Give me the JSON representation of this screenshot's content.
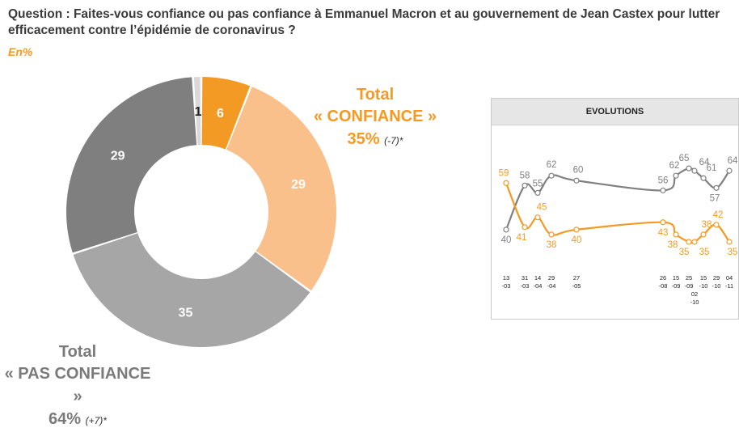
{
  "header": {
    "question": "Question : Faites-vous confiance ou pas confiance à Emmanuel Macron et au gouvernement de Jean Castex pour lutter efficacement contre l’épidémie de coronavirus ?",
    "unit": "En%"
  },
  "colors": {
    "orange": "#F39A24",
    "light_orange": "#F9C08B",
    "light_grey": "#A6A6A6",
    "dark_grey": "#7F7F7F",
    "very_light_grey": "#D9D9D9",
    "line_grey": "#808080"
  },
  "labels": {
    "confiance": {
      "t1": "Total",
      "t2": "« CONFIANCE »",
      "pct": "35%",
      "chg": "(-7)*"
    },
    "pas_confiance": {
      "t1": "Total",
      "t2": "« PAS CONFIANCE »",
      "pct": "64%",
      "chg": "(+7)*"
    }
  },
  "chart_data": [
    {
      "type": "pie",
      "style": "donut",
      "slices": [
        {
          "value": 6,
          "color": "#F39A24"
        },
        {
          "value": 29,
          "color": "#F9C08B"
        },
        {
          "value": 35,
          "color": "#A6A6A6"
        },
        {
          "value": 29,
          "color": "#7F7F7F"
        },
        {
          "value": 1,
          "color": "#D9D9D9"
        }
      ]
    },
    {
      "type": "line",
      "title": "EVOLUTIONS",
      "categories": [
        [
          "13",
          "-03"
        ],
        [
          "31",
          "-03"
        ],
        [
          "14",
          "-04"
        ],
        [
          "29",
          "-04"
        ],
        [
          "27",
          "-05"
        ],
        [
          "26",
          "-08"
        ],
        [
          "15",
          "-09"
        ],
        [
          "25",
          "-09"
        ],
        [
          "02",
          "-10"
        ],
        [
          "15",
          "-10"
        ],
        [
          "29",
          "-10"
        ],
        [
          "04",
          "-11"
        ]
      ],
      "series": [
        {
          "color": "#808080",
          "values": [
            40,
            58,
            55,
            62,
            60,
            56,
            62,
            65,
            64,
            61,
            57,
            64
          ]
        },
        {
          "color": "#F39A24",
          "values": [
            59,
            41,
            45,
            38,
            40,
            43,
            38,
            35,
            35,
            38,
            42,
            35
          ]
        }
      ]
    }
  ]
}
